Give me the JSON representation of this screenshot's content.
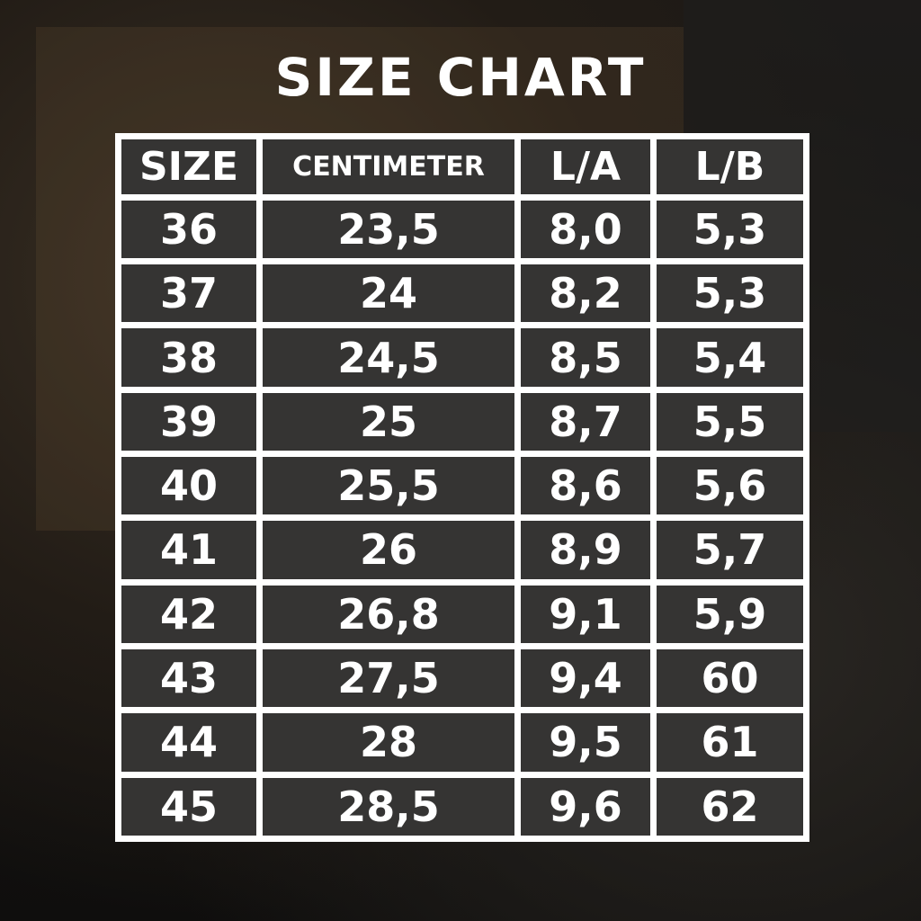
{
  "title": "SIZE CHART",
  "headers": [
    "SIZE",
    "CENTIMETER",
    "L/A",
    "L/B"
  ],
  "rows": [
    [
      "36",
      "23,5",
      "8,0",
      "5,3"
    ],
    [
      "37",
      "24",
      "8,2",
      "5,3"
    ],
    [
      "38",
      "24,5",
      "8,5",
      "5,4"
    ],
    [
      "39",
      "25",
      "8,7",
      "5,5"
    ],
    [
      "40",
      "25,5",
      "8,6",
      "5,6"
    ],
    [
      "41",
      "26",
      "8,9",
      "5,7"
    ],
    [
      "42",
      "26,8",
      "9,1",
      "5,9"
    ],
    [
      "43",
      "27,5",
      "9,4",
      "60"
    ],
    [
      "44",
      "28",
      "9,5",
      "61"
    ],
    [
      "45",
      "28,5",
      "9,6",
      "62"
    ]
  ]
}
